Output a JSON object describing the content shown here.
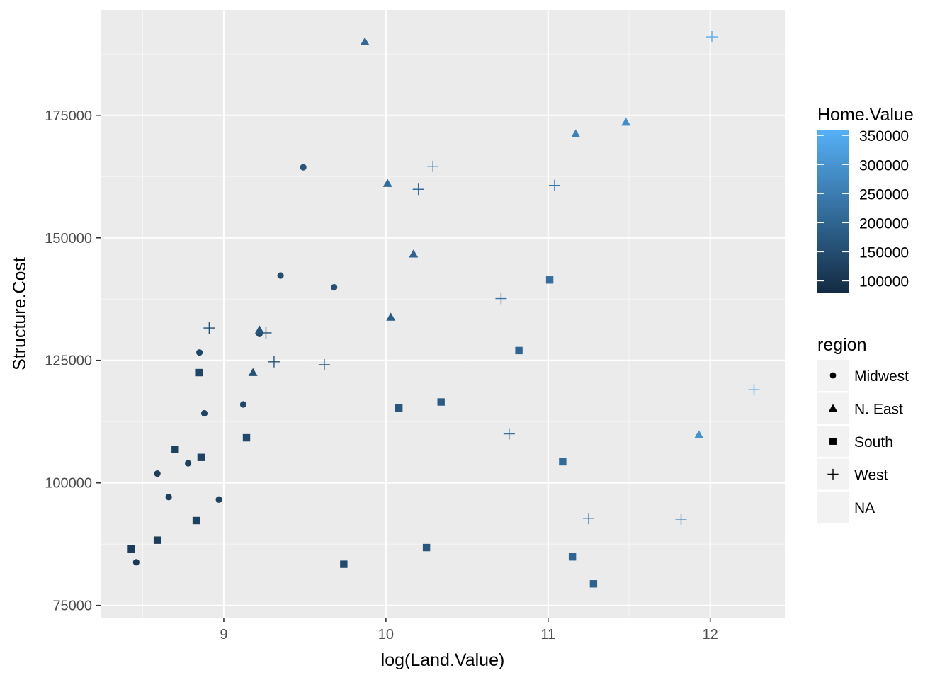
{
  "chart_data": {
    "type": "scatter",
    "title": "",
    "xlabel": "log(Land.Value)",
    "ylabel": "Structure.Cost",
    "xlim": [
      8.24,
      12.46
    ],
    "ylim": [
      72500,
      196500
    ],
    "x_ticks": [
      9,
      10,
      11,
      12
    ],
    "x_tick_labels": [
      "9",
      "10",
      "11",
      "12"
    ],
    "y_ticks": [
      75000,
      100000,
      125000,
      150000,
      175000
    ],
    "y_tick_labels": [
      "75000",
      "100000",
      "125000",
      "150000",
      "175000"
    ],
    "grid": true,
    "legend_position": "right",
    "colorbar": {
      "title": "Home.Value",
      "ticks": [
        100000,
        150000,
        200000,
        250000,
        300000,
        350000
      ],
      "tick_labels": [
        "100000",
        "150000",
        "200000",
        "250000",
        "300000",
        "350000"
      ],
      "range": [
        80000,
        360000
      ],
      "low_color": "#132b43",
      "high_color": "#56b1f7"
    },
    "shape_legend": {
      "title": "region",
      "items": [
        {
          "label": "Midwest",
          "shape": "circle"
        },
        {
          "label": "N. East",
          "shape": "triangle"
        },
        {
          "label": "South",
          "shape": "square"
        },
        {
          "label": "West",
          "shape": "plus"
        },
        {
          "label": "NA",
          "shape": "none"
        }
      ]
    },
    "series": [
      {
        "name": "Midwest",
        "shape": "circle",
        "points": [
          {
            "x": 8.46,
            "y": 83800,
            "value": 110000
          },
          {
            "x": 8.59,
            "y": 101900,
            "value": 120000
          },
          {
            "x": 8.66,
            "y": 97100,
            "value": 120000
          },
          {
            "x": 8.78,
            "y": 104000,
            "value": 125000
          },
          {
            "x": 8.85,
            "y": 126600,
            "value": 135000
          },
          {
            "x": 8.88,
            "y": 114200,
            "value": 130000
          },
          {
            "x": 8.97,
            "y": 96600,
            "value": 130000
          },
          {
            "x": 9.12,
            "y": 116000,
            "value": 140000
          },
          {
            "x": 9.22,
            "y": 130400,
            "value": 145000
          },
          {
            "x": 9.35,
            "y": 142300,
            "value": 150000
          },
          {
            "x": 9.49,
            "y": 164400,
            "value": 165000
          },
          {
            "x": 9.68,
            "y": 139900,
            "value": 155000
          }
        ]
      },
      {
        "name": "N. East",
        "shape": "triangle",
        "points": [
          {
            "x": 9.18,
            "y": 122500,
            "value": 160000
          },
          {
            "x": 9.22,
            "y": 131200,
            "value": 165000
          },
          {
            "x": 9.87,
            "y": 190000,
            "value": 210000
          },
          {
            "x": 10.01,
            "y": 161100,
            "value": 215000
          },
          {
            "x": 10.03,
            "y": 133800,
            "value": 180000
          },
          {
            "x": 10.17,
            "y": 146700,
            "value": 200000
          },
          {
            "x": 11.17,
            "y": 171200,
            "value": 260000
          },
          {
            "x": 11.48,
            "y": 173600,
            "value": 285000
          },
          {
            "x": 11.93,
            "y": 109800,
            "value": 295000
          }
        ]
      },
      {
        "name": "South",
        "shape": "square",
        "points": [
          {
            "x": 8.43,
            "y": 86500,
            "value": 115000
          },
          {
            "x": 8.59,
            "y": 88300,
            "value": 115000
          },
          {
            "x": 8.7,
            "y": 106800,
            "value": 125000
          },
          {
            "x": 8.83,
            "y": 92300,
            "value": 125000
          },
          {
            "x": 8.85,
            "y": 122500,
            "value": 135000
          },
          {
            "x": 8.86,
            "y": 105200,
            "value": 130000
          },
          {
            "x": 9.14,
            "y": 109200,
            "value": 140000
          },
          {
            "x": 9.74,
            "y": 83400,
            "value": 145000
          },
          {
            "x": 10.08,
            "y": 115300,
            "value": 170000
          },
          {
            "x": 10.25,
            "y": 86800,
            "value": 170000
          },
          {
            "x": 10.34,
            "y": 116500,
            "value": 180000
          },
          {
            "x": 10.82,
            "y": 127000,
            "value": 200000
          },
          {
            "x": 11.01,
            "y": 141400,
            "value": 220000
          },
          {
            "x": 11.09,
            "y": 104300,
            "value": 210000
          },
          {
            "x": 11.15,
            "y": 84900,
            "value": 200000
          },
          {
            "x": 11.28,
            "y": 79400,
            "value": 195000
          }
        ]
      },
      {
        "name": "West",
        "shape": "plus",
        "points": [
          {
            "x": 8.91,
            "y": 131600,
            "value": 150000
          },
          {
            "x": 9.26,
            "y": 130600,
            "value": 160000
          },
          {
            "x": 9.31,
            "y": 124700,
            "value": 165000
          },
          {
            "x": 9.62,
            "y": 124100,
            "value": 175000
          },
          {
            "x": 10.2,
            "y": 159900,
            "value": 215000
          },
          {
            "x": 10.29,
            "y": 164600,
            "value": 220000
          },
          {
            "x": 10.71,
            "y": 137600,
            "value": 230000
          },
          {
            "x": 10.76,
            "y": 110000,
            "value": 230000
          },
          {
            "x": 11.04,
            "y": 160700,
            "value": 240000
          },
          {
            "x": 11.25,
            "y": 92700,
            "value": 245000
          },
          {
            "x": 11.82,
            "y": 92600,
            "value": 265000
          },
          {
            "x": 12.01,
            "y": 191000,
            "value": 350000
          },
          {
            "x": 12.27,
            "y": 119000,
            "value": 320000
          }
        ]
      }
    ]
  }
}
